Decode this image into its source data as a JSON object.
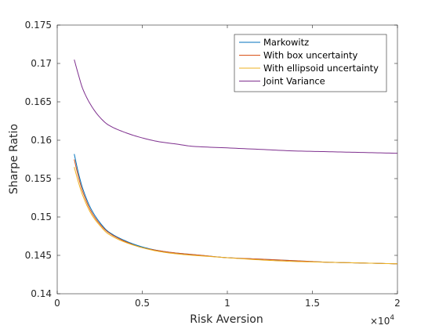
{
  "chart_data": {
    "type": "line",
    "xlabel": "Risk Aversion",
    "ylabel": "Sharpe Ratio",
    "x_exponent_label": "×10",
    "x_exponent_power": "4",
    "xlim": [
      0,
      20000
    ],
    "ylim": [
      0.14,
      0.175
    ],
    "x_ticks": [
      0,
      5000,
      10000,
      15000,
      20000
    ],
    "x_tick_labels": [
      "0",
      "0.5",
      "1",
      "1.5",
      "2"
    ],
    "y_ticks": [
      0.14,
      0.145,
      0.15,
      0.155,
      0.16,
      0.165,
      0.17,
      0.175
    ],
    "y_tick_labels": [
      "0.14",
      "0.145",
      "0.15",
      "0.155",
      "0.16",
      "0.165",
      "0.17",
      "0.175"
    ],
    "grid": false,
    "legend_position": "top-right",
    "x": [
      1000,
      1250,
      1500,
      2000,
      2500,
      3000,
      4000,
      5000,
      6000,
      7000,
      8000,
      10000,
      12000,
      14000,
      16000,
      18000,
      20000
    ],
    "series": [
      {
        "name": "Markowitz",
        "color": "#0072BD",
        "values": [
          0.1582,
          0.1557,
          0.1537,
          0.151,
          0.1493,
          0.1481,
          0.1469,
          0.1461,
          0.1456,
          0.1453,
          0.1451,
          0.1447,
          0.1445,
          0.1443,
          0.1441,
          0.144,
          0.1439
        ]
      },
      {
        "name": "With box uncertainty",
        "color": "#D95319",
        "values": [
          0.1575,
          0.1552,
          0.1533,
          0.1507,
          0.1491,
          0.148,
          0.1468,
          0.146,
          0.1456,
          0.1453,
          0.1451,
          0.1447,
          0.1445,
          0.1443,
          0.1441,
          0.144,
          0.1439
        ]
      },
      {
        "name": "With ellipsoid uncertainty",
        "color": "#EDB120",
        "values": [
          0.1565,
          0.1545,
          0.1528,
          0.1504,
          0.1489,
          0.1478,
          0.1467,
          0.146,
          0.1455,
          0.1452,
          0.145,
          0.1447,
          0.1444,
          0.1442,
          0.1441,
          0.144,
          0.1439
        ]
      },
      {
        "name": "Joint Variance",
        "color": "#7E2F8E",
        "values": [
          0.1705,
          0.1685,
          0.1667,
          0.1645,
          0.163,
          0.162,
          0.161,
          0.1603,
          0.1598,
          0.1595,
          0.1592,
          0.159,
          0.1588,
          0.1586,
          0.1585,
          0.1584,
          0.1583
        ]
      }
    ]
  }
}
